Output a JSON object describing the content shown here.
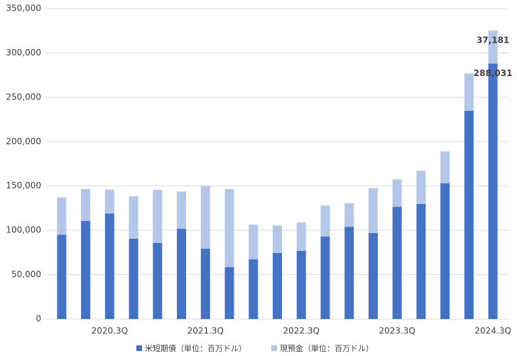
{
  "chart_data": {
    "type": "stacked_bar",
    "categories": [
      null,
      null,
      "2020.3Q",
      null,
      null,
      null,
      "2021.3Q",
      null,
      null,
      null,
      "2022.3Q",
      null,
      null,
      null,
      "2023.3Q",
      null,
      null,
      null,
      "2024.3Q"
    ],
    "series": [
      {
        "name": "米短期債（単位：百万ドル）",
        "color": "#4472c4",
        "values": [
          95000,
          110500,
          119000,
          90500,
          85700,
          101700,
          79300,
          58500,
          67300,
          74500,
          76900,
          92900,
          104000,
          96900,
          126500,
          129700,
          153000,
          234700,
          288031
        ],
        "value_labels": [
          null,
          null,
          null,
          null,
          null,
          null,
          null,
          null,
          null,
          null,
          null,
          null,
          null,
          null,
          null,
          null,
          null,
          null,
          "288,031"
        ]
      },
      {
        "name": "現預金（単位：百万ドル）",
        "color": "#b4c7e7",
        "values": [
          42000,
          36000,
          27000,
          48000,
          60000,
          42000,
          70500,
          88000,
          39000,
          31000,
          32000,
          35000,
          26500,
          50500,
          31000,
          37500,
          36000,
          42000,
          37181
        ],
        "value_labels": [
          null,
          null,
          null,
          null,
          null,
          null,
          null,
          null,
          null,
          null,
          null,
          null,
          null,
          null,
          null,
          null,
          null,
          null,
          "37,181"
        ]
      }
    ],
    "ylim": [
      0,
      350000
    ],
    "yticks": [
      0,
      {
        "value": 50000,
        "label": "50,000"
      },
      {
        "value": 100000,
        "label": "100,000"
      },
      {
        "value": 150000,
        "label": "150,000"
      },
      {
        "value": 200000,
        "label": "200,000"
      },
      {
        "value": 250000,
        "label": "250,000"
      },
      {
        "value": 300000,
        "label": "300,000"
      },
      {
        "value": 350000,
        "label": "350,000"
      }
    ],
    "grid": true,
    "legend": "bottom"
  }
}
